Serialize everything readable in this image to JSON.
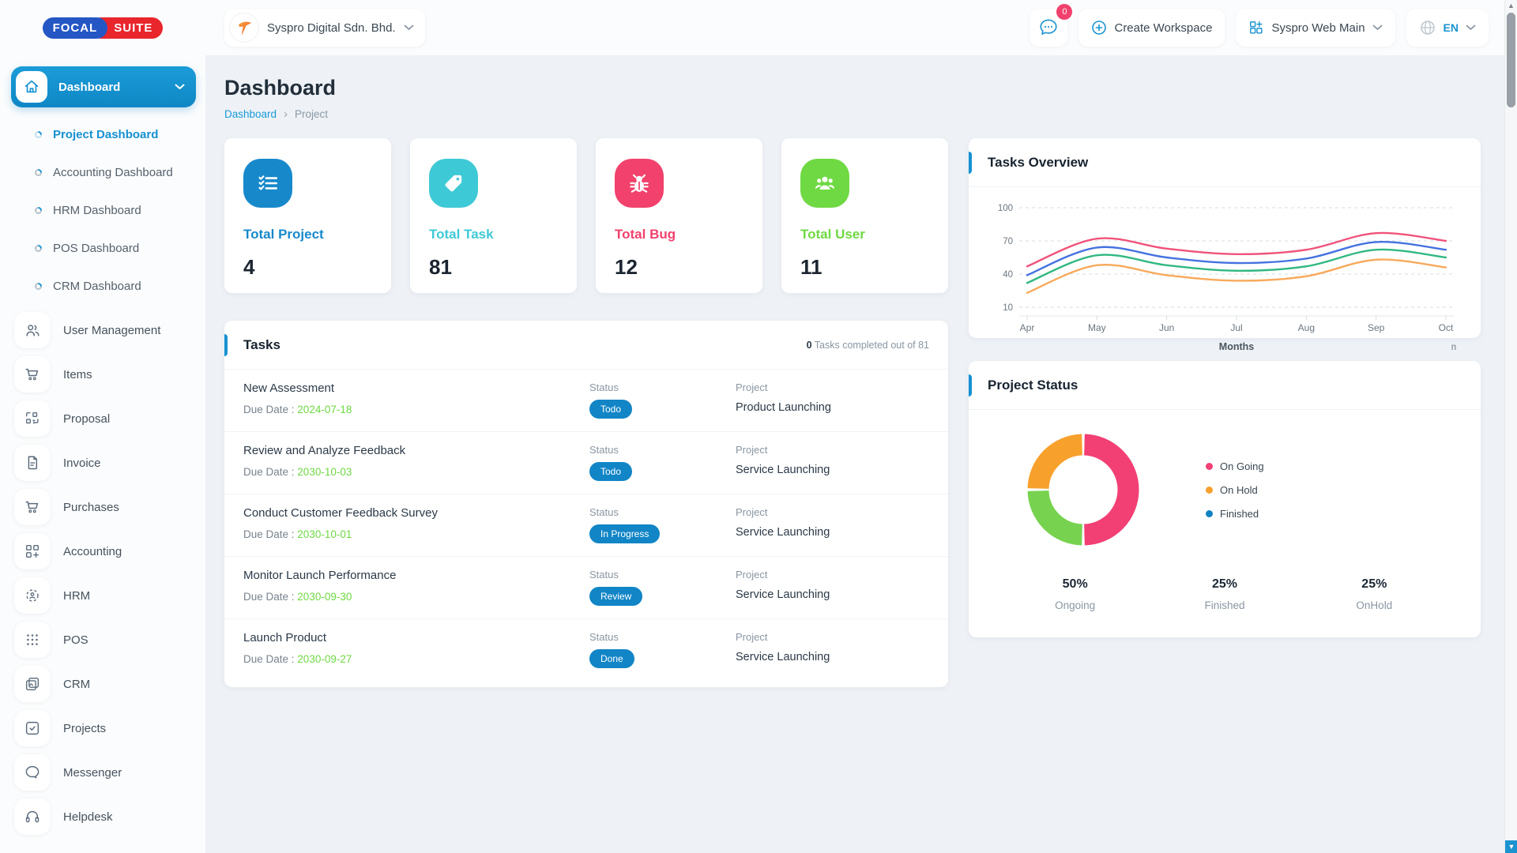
{
  "theme": {
    "accent": "#1591d2",
    "status_pill": "#1185c6",
    "date_green": "#6fd943",
    "badge_red": "#f1416c"
  },
  "brand": {
    "part1": "FOCAL",
    "part2": "SUITE"
  },
  "topbar": {
    "workspace_name": "Syspro Digital Sdn. Bhd.",
    "messages_badge": "0",
    "create_workspace_label": "Create Workspace",
    "app_selector_label": "Syspro Web Main",
    "language_label": "EN"
  },
  "sidebar": {
    "dashboard_label": "Dashboard",
    "dashboard_children": [
      {
        "label": "Project Dashboard",
        "active": true
      },
      {
        "label": "Accounting Dashboard",
        "active": false
      },
      {
        "label": "HRM Dashboard",
        "active": false
      },
      {
        "label": "POS Dashboard",
        "active": false
      },
      {
        "label": "CRM Dashboard",
        "active": false
      }
    ],
    "items": [
      {
        "label": "User Management",
        "icon": "users-icon",
        "has_submenu": true
      },
      {
        "label": "Items",
        "icon": "cart-icon",
        "has_submenu": false
      },
      {
        "label": "Proposal",
        "icon": "qr-icon",
        "has_submenu": false
      },
      {
        "label": "Invoice",
        "icon": "document-icon",
        "has_submenu": false
      },
      {
        "label": "Purchases",
        "icon": "cart-icon",
        "has_submenu": true
      },
      {
        "label": "Accounting",
        "icon": "grid-plus-icon",
        "has_submenu": true
      },
      {
        "label": "HRM",
        "icon": "target-person-icon",
        "has_submenu": true
      },
      {
        "label": "POS",
        "icon": "dots-grid-icon",
        "has_submenu": true
      },
      {
        "label": "CRM",
        "icon": "layers-icon",
        "has_submenu": true
      },
      {
        "label": "Projects",
        "icon": "check-square-icon",
        "has_submenu": true
      },
      {
        "label": "Messenger",
        "icon": "chat-icon",
        "has_submenu": false
      },
      {
        "label": "Helpdesk",
        "icon": "headset-icon",
        "has_submenu": false
      }
    ]
  },
  "page": {
    "title": "Dashboard",
    "breadcrumb_root": "Dashboard",
    "breadcrumb_current": "Project"
  },
  "stats": [
    {
      "label": "Total Project",
      "value": "4",
      "color": "#1789cb",
      "icon": "checklist-icon"
    },
    {
      "label": "Total Task",
      "value": "81",
      "color": "#3ec9d6",
      "icon": "tag-icon"
    },
    {
      "label": "Total Bug",
      "value": "12",
      "color": "#f1416c",
      "icon": "bug-icon"
    },
    {
      "label": "Total User",
      "value": "11",
      "color": "#6fd943",
      "icon": "users-group-icon"
    }
  ],
  "tasks": {
    "title": "Tasks",
    "completed_count": "0",
    "completed_text": " Tasks completed out of 81",
    "labels": {
      "due": "Due Date : ",
      "status": "Status",
      "project": "Project"
    },
    "rows": [
      {
        "name": "New Assessment",
        "due_date": "2024-07-18",
        "status": "Todo",
        "project": "Product Launching"
      },
      {
        "name": "Review and Analyze Feedback",
        "due_date": "2030-10-03",
        "status": "Todo",
        "project": "Service Launching"
      },
      {
        "name": "Conduct Customer Feedback Survey",
        "due_date": "2030-10-01",
        "status": "In Progress",
        "project": "Service Launching"
      },
      {
        "name": "Monitor Launch Performance",
        "due_date": "2030-09-30",
        "status": "Review",
        "project": "Service Launching"
      },
      {
        "name": "Launch Product",
        "due_date": "2030-09-27",
        "status": "Done",
        "project": "Service Launching"
      }
    ]
  },
  "chart_data": [
    {
      "id": "tasks_overview",
      "type": "line",
      "title": "Tasks Overview",
      "x": [
        "Apr",
        "May",
        "Jun",
        "Jul",
        "Aug",
        "Sep",
        "Oct"
      ],
      "xlabel": "Months",
      "right_edge_text": "n",
      "ylim": [
        10,
        100
      ],
      "yticks": [
        10,
        40,
        70,
        100
      ],
      "grid": "dashed-horizontal",
      "legend_position": "none",
      "series": [
        {
          "name": "series-pink",
          "color": "#f0537b",
          "values": [
            47,
            72,
            63,
            58,
            62,
            77,
            70
          ]
        },
        {
          "name": "series-blue",
          "color": "#4472e0",
          "values": [
            39,
            64,
            55,
            50,
            54,
            69,
            62
          ]
        },
        {
          "name": "series-green",
          "color": "#30b880",
          "values": [
            32,
            57,
            48,
            43,
            47,
            62,
            55
          ]
        },
        {
          "name": "series-orange",
          "color": "#f8a95b",
          "values": [
            23,
            48,
            39,
            34,
            38,
            53,
            46
          ]
        }
      ]
    },
    {
      "id": "project_status",
      "type": "pie",
      "title": "Project Status",
      "donut": true,
      "slices": [
        {
          "label": "On Going",
          "value": 50,
          "color": "#f23f74"
        },
        {
          "label": "Finished",
          "value": 25,
          "color": "#77d34f"
        },
        {
          "label": "On Hold",
          "value": 25,
          "color": "#f8a02c"
        }
      ],
      "legend": [
        {
          "label": "On Going",
          "color": "#f23f74"
        },
        {
          "label": "On Hold",
          "color": "#f8a02c"
        },
        {
          "label": "Finished",
          "color": "#1082c4"
        }
      ],
      "stats": [
        {
          "percent": "50%",
          "label": "Ongoing"
        },
        {
          "percent": "25%",
          "label": "Finished"
        },
        {
          "percent": "25%",
          "label": "OnHold"
        }
      ]
    }
  ]
}
